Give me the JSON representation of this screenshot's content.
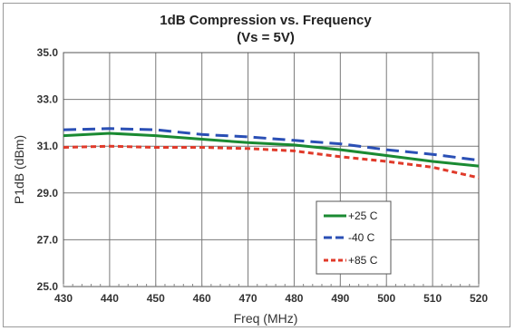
{
  "chart_data": {
    "type": "line",
    "title": "1dB Compression vs. Frequency",
    "subtitle": "(Vs = 5V)",
    "xlabel": "Freq (MHz)",
    "ylabel": "P1dB (dBm)",
    "xlim": [
      430,
      520
    ],
    "ylim": [
      25.0,
      35.0
    ],
    "x_ticks": [
      "430",
      "440",
      "450",
      "460",
      "470",
      "480",
      "490",
      "500",
      "510",
      "520"
    ],
    "y_ticks": [
      "25.0",
      "27.0",
      "29.0",
      "31.0",
      "33.0",
      "35.0"
    ],
    "grid": true,
    "legend_position": "lower-right",
    "x": [
      430,
      440,
      450,
      460,
      470,
      480,
      490,
      500,
      510,
      520
    ],
    "series": [
      {
        "name": "+25 C",
        "color": "#1a8a32",
        "dash": "solid",
        "values": [
          31.45,
          31.55,
          31.45,
          31.3,
          31.15,
          31.05,
          30.85,
          30.6,
          30.35,
          30.15
        ]
      },
      {
        "name": "-40 C",
        "color": "#2a4fb5",
        "dash": "long-dash",
        "values": [
          31.7,
          31.75,
          31.7,
          31.5,
          31.4,
          31.25,
          31.1,
          30.85,
          30.65,
          30.4
        ]
      },
      {
        "name": "+85 C",
        "color": "#e03a2a",
        "dash": "short-dash",
        "values": [
          30.95,
          31.0,
          30.95,
          30.95,
          30.9,
          30.8,
          30.55,
          30.35,
          30.1,
          29.65
        ]
      }
    ]
  }
}
